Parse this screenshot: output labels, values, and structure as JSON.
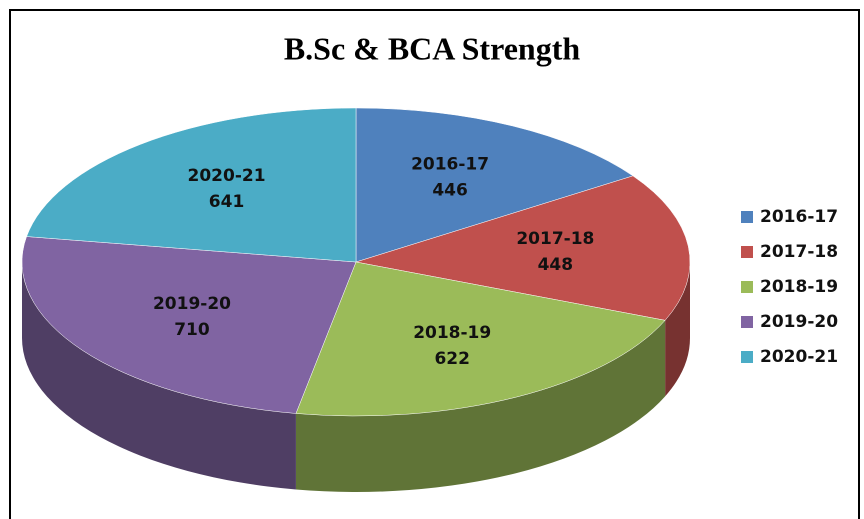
{
  "chart_data": {
    "type": "pie",
    "title": "B.Sc & BCA Strength",
    "categories": [
      "2016-17",
      "2017-18",
      "2018-19",
      "2019-20",
      "2020-21"
    ],
    "values": [
      446,
      448,
      622,
      710,
      641
    ],
    "colors": [
      "#4f81bd",
      "#c0504d",
      "#9bbb59",
      "#8064a2",
      "#4bacc6"
    ],
    "legend": "right"
  }
}
